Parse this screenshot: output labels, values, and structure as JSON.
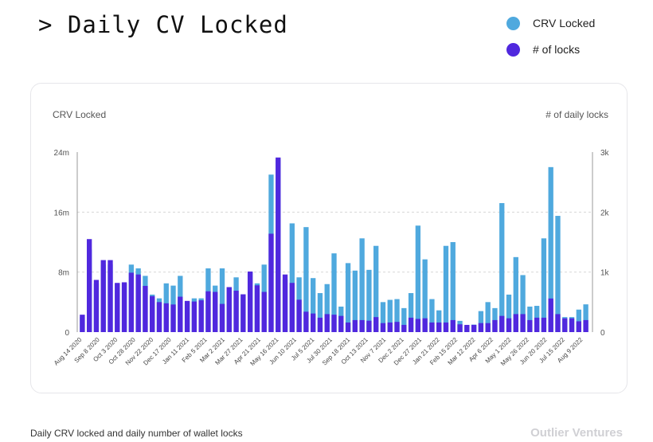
{
  "header": {
    "title": "> Daily CV Locked"
  },
  "legend": [
    {
      "label": "CRV Locked",
      "color": "#4fa9de"
    },
    {
      "label": "# of locks",
      "color": "#5028de"
    }
  ],
  "chart_data": {
    "type": "bar",
    "y_left_label": "CRV Locked",
    "y_right_label": "# of daily locks",
    "y_left_ticks": [
      "0",
      "8m",
      "16m",
      "24m"
    ],
    "y_right_ticks": [
      "0",
      "1k",
      "2k",
      "3k"
    ],
    "ylim_left": [
      0,
      24
    ],
    "ylim_right": [
      0,
      3000
    ],
    "x_tick_labels": [
      "Aug 14 2020",
      "Sep 8 2020",
      "Oct 3 2020",
      "Oct 28 2020",
      "Nov 22 2020",
      "Dec 17 2020",
      "Jan 11 2021",
      "Feb 5 2021",
      "Mar 2 2021",
      "Mar 27 2021",
      "Apr 21 2021",
      "May 16 2021",
      "Jun 10 2021",
      "Jul 5 2021",
      "Jul 30 2021",
      "Sep 18 2021",
      "Oct 13 2021",
      "Nov 7 2021",
      "Dec 2 2021",
      "Dec 27 2021",
      "Jan 21 2022",
      "Feb 15 2022",
      "Mar 12 2022",
      "Apr 6 2022",
      "May 1 2022",
      "May 26 2022",
      "Jun 20 2022",
      "Jul 15 2022",
      "Aug 9 2022"
    ],
    "series": [
      {
        "name": "CRV Locked",
        "color": "#4fa9de",
        "axis": "left",
        "values": [
          2.0,
          11.0,
          6.5,
          9.0,
          9.0,
          6.5,
          6.5,
          9.0,
          8.5,
          7.5,
          5.0,
          4.5,
          6.5,
          6.2,
          7.5,
          4.0,
          4.5,
          4.5,
          8.5,
          6.2,
          8.5,
          6.0,
          7.3,
          5.0,
          8.0,
          6.5,
          9.0,
          21.0,
          23.0,
          7.0,
          14.5,
          7.3,
          14.0,
          7.2,
          5.2,
          6.4,
          10.5,
          3.4,
          9.2,
          8.2,
          12.5,
          8.3,
          11.5,
          4.0,
          4.3,
          4.4,
          3.2,
          5.2,
          14.2,
          9.7,
          4.4,
          2.9,
          11.5,
          12.0,
          1.5,
          0.8,
          1.0,
          2.8,
          4.0,
          3.2,
          17.2,
          5.0,
          10.0,
          7.6,
          3.4,
          3.5,
          12.5,
          22.0,
          15.5,
          2.0,
          2.0,
          3.0,
          3.7
        ]
      },
      {
        "name": "# of locks",
        "color": "#5028de",
        "axis": "right",
        "values": [
          290,
          1550,
          870,
          1200,
          1200,
          820,
          830,
          990,
          960,
          770,
          600,
          500,
          480,
          460,
          590,
          520,
          510,
          530,
          680,
          670,
          470,
          750,
          690,
          630,
          1010,
          780,
          670,
          1640,
          2910,
          960,
          820,
          540,
          340,
          310,
          240,
          300,
          290,
          270,
          160,
          200,
          200,
          190,
          250,
          150,
          160,
          170,
          120,
          240,
          220,
          230,
          160,
          160,
          160,
          200,
          130,
          120,
          120,
          150,
          150,
          200,
          270,
          230,
          300,
          300,
          200,
          240,
          240,
          560,
          300,
          230,
          230,
          180,
          200
        ]
      }
    ]
  },
  "footer": {
    "caption": "Daily CRV locked and daily number of wallet locks",
    "brand": "Outlier Ventures"
  }
}
